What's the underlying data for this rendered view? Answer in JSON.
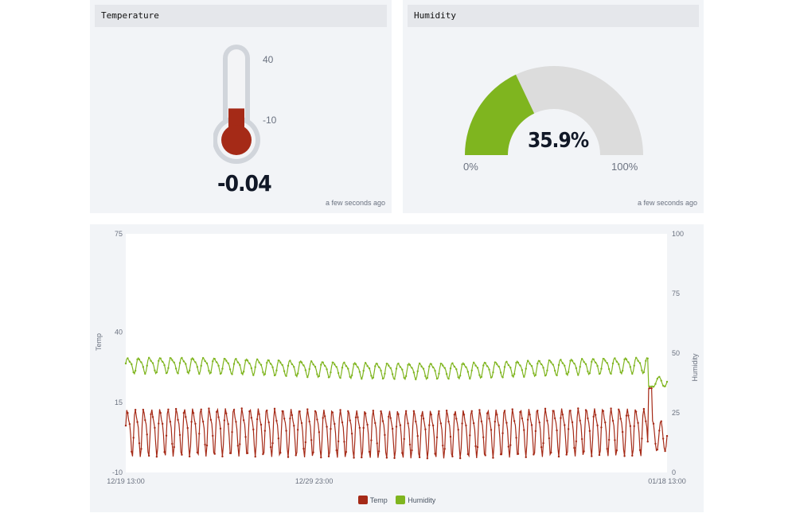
{
  "temperature": {
    "title": "Temperature",
    "value": "-0.04",
    "scale_max_label": "40",
    "scale_min_label": "-10",
    "updated": "a few seconds ago",
    "fill_fraction": 0.2,
    "color": "#a52a17"
  },
  "humidity": {
    "title": "Humidity",
    "value": "35.9%",
    "min_label": "0%",
    "max_label": "100%",
    "updated": "a few seconds ago",
    "gauge_fraction": 0.359,
    "color": "#7fb51f"
  },
  "chart_data": {
    "type": "line",
    "x_ticks": [
      "12/19 13:00",
      "12/29 23:00",
      "01/18 13:00"
    ],
    "y_left": {
      "label": "Temp",
      "ticks": [
        "75",
        "40",
        "15",
        "-10"
      ],
      "range": [
        -10,
        75
      ]
    },
    "y_right": {
      "label": "Humidity",
      "ticks": [
        "100",
        "75",
        "50",
        "25",
        "0"
      ],
      "range": [
        0,
        100
      ]
    },
    "series": [
      {
        "name": "Temp",
        "axis": "left",
        "color": "#a52a17",
        "baseline": 5,
        "amplitude": 9,
        "cycles": 66,
        "end_spike": 20,
        "end_value": 3
      },
      {
        "name": "Humidity",
        "axis": "right",
        "color": "#7fb51f",
        "baseline": 44,
        "amplitude": 3.5,
        "cycles": 50,
        "end_spike": 36,
        "end_value": 38
      }
    ],
    "legend": [
      "Temp",
      "Humidity"
    ],
    "legend_position": "bottom"
  }
}
